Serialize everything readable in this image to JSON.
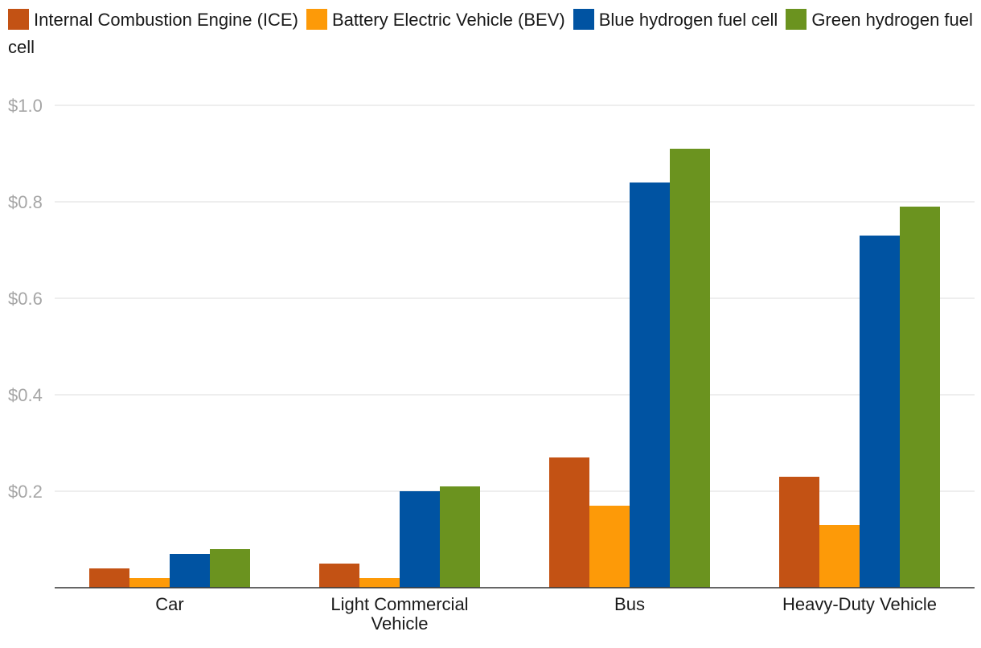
{
  "chart_data": {
    "type": "bar",
    "title": "",
    "xlabel": "",
    "ylabel": "",
    "categories": [
      [
        "Car"
      ],
      [
        "Light Commercial",
        "Vehicle"
      ],
      [
        "Bus"
      ],
      [
        "Heavy-Duty Vehicle"
      ]
    ],
    "series": [
      {
        "name": "Internal Combustion Engine (ICE)",
        "color": "#c35214",
        "values": [
          0.04,
          0.05,
          0.27,
          0.23
        ]
      },
      {
        "name": "Battery Electric Vehicle (BEV)",
        "color": "#fd9a08",
        "values": [
          0.02,
          0.02,
          0.17,
          0.13
        ]
      },
      {
        "name": "Blue hydrogen fuel cell",
        "color": "#0053a2",
        "values": [
          0.07,
          0.2,
          0.84,
          0.73
        ]
      },
      {
        "name": "Green hydrogen fuel cell",
        "color": "#6b931f",
        "values": [
          0.08,
          0.21,
          0.91,
          0.79
        ]
      }
    ],
    "ylim": [
      0,
      1.0
    ],
    "yticks": [
      0.2,
      0.4,
      0.6,
      0.8,
      1.0
    ],
    "ytick_labels": [
      "$0.2",
      "$0.4",
      "$0.6",
      "$0.8",
      "$1.0"
    ],
    "grid": true,
    "legend": "top"
  }
}
